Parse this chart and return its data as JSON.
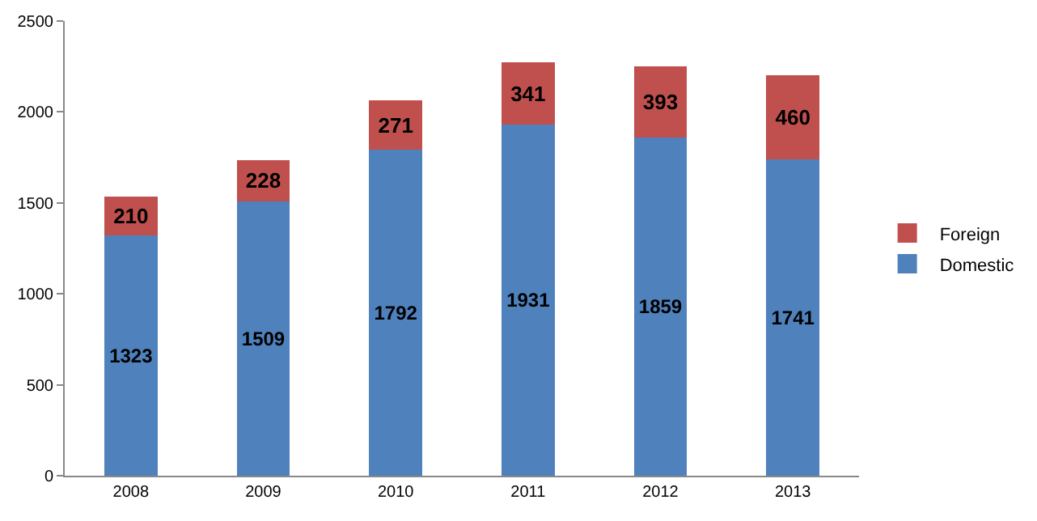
{
  "chart_data": {
    "type": "bar",
    "stacked": true,
    "categories": [
      "2008",
      "2009",
      "2010",
      "2011",
      "2012",
      "2013"
    ],
    "series": [
      {
        "name": "Domestic",
        "color": "#4f81bd",
        "values": [
          1323,
          1509,
          1792,
          1931,
          1859,
          1741
        ]
      },
      {
        "name": "Foreign",
        "color": "#c0504d",
        "values": [
          210,
          228,
          271,
          341,
          393,
          460
        ]
      }
    ],
    "ylim": [
      0,
      2500
    ],
    "yticks": [
      0,
      500,
      1000,
      1500,
      2000,
      2500
    ],
    "data_labels": true,
    "legend": "right",
    "grid": false
  }
}
